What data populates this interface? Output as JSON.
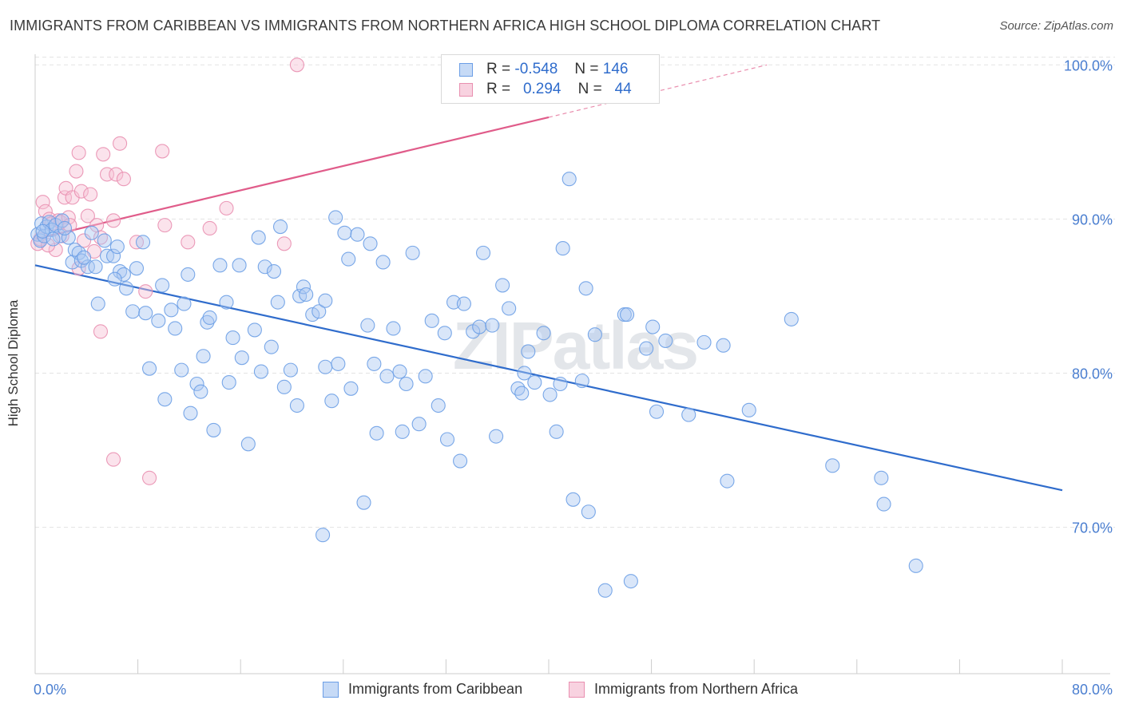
{
  "title": "IMMIGRANTS FROM CARIBBEAN VS IMMIGRANTS FROM NORTHERN AFRICA HIGH SCHOOL DIPLOMA CORRELATION CHART",
  "source": "Source: ZipAtlas.com",
  "watermark": "ZIPatlas",
  "colors": {
    "blue": "#6b9ee6",
    "blue_fill": "#aac8f2",
    "blue_line": "#2f6ccc",
    "pink": "#e98fb0",
    "pink_fill": "#f6c2d4",
    "pink_line": "#e05c8a"
  },
  "legend_top": {
    "rows": [
      {
        "r_label": "R =",
        "r_value": "-0.548",
        "n_label": "N =",
        "n_value": "146"
      },
      {
        "r_label": "R =",
        "r_value": "0.294",
        "n_label": "N =",
        "n_value": "44"
      }
    ]
  },
  "legend_bottom": [
    "Immigrants from Caribbean",
    "Immigrants from Northern Africa"
  ],
  "chart_data": {
    "type": "scatter",
    "xlabel": "",
    "ylabel": "High School Diploma",
    "xlim": [
      0,
      80
    ],
    "ylim": [
      60.5,
      101
    ],
    "x_tick_labels": [
      "0.0%",
      "80.0%"
    ],
    "y_ticks": [
      70,
      80,
      90,
      100
    ],
    "y_tick_labels": [
      "70.0%",
      "80.0%",
      "90.0%",
      "100.0%"
    ],
    "grid": "horizontal dashed",
    "legend": "top-center",
    "series": [
      {
        "name": "Immigrants from Caribbean",
        "color": "#6b9ee6",
        "trend": {
          "x": [
            0,
            80
          ],
          "y": [
            87.0,
            72.4
          ]
        },
        "points": [
          [
            0.2,
            89.0
          ],
          [
            0.4,
            88.6
          ],
          [
            0.5,
            89.7
          ],
          [
            0.7,
            88.9
          ],
          [
            0.9,
            89.5
          ],
          [
            1.1,
            89.8
          ],
          [
            1.3,
            89.3
          ],
          [
            1.6,
            89.6
          ],
          [
            1.9,
            88.9
          ],
          [
            2.1,
            89.9
          ],
          [
            2.6,
            88.8
          ],
          [
            2.9,
            87.2
          ],
          [
            3.1,
            88.0
          ],
          [
            3.4,
            87.8
          ],
          [
            3.6,
            87.3
          ],
          [
            4.1,
            86.9
          ],
          [
            4.4,
            89.1
          ],
          [
            4.7,
            86.9
          ],
          [
            4.9,
            84.5
          ],
          [
            5.4,
            88.6
          ],
          [
            5.6,
            87.6
          ],
          [
            6.1,
            87.6
          ],
          [
            6.4,
            88.2
          ],
          [
            6.6,
            86.6
          ],
          [
            6.9,
            86.4
          ],
          [
            7.1,
            85.5
          ],
          [
            7.6,
            84.0
          ],
          [
            7.9,
            86.8
          ],
          [
            8.4,
            88.5
          ],
          [
            8.6,
            83.9
          ],
          [
            8.9,
            80.3
          ],
          [
            9.6,
            83.4
          ],
          [
            9.9,
            85.7
          ],
          [
            10.1,
            78.3
          ],
          [
            10.6,
            84.1
          ],
          [
            10.9,
            82.9
          ],
          [
            11.4,
            80.2
          ],
          [
            11.6,
            84.5
          ],
          [
            11.9,
            86.4
          ],
          [
            12.1,
            77.4
          ],
          [
            12.6,
            79.3
          ],
          [
            12.9,
            78.8
          ],
          [
            13.1,
            81.1
          ],
          [
            13.4,
            83.3
          ],
          [
            13.6,
            83.6
          ],
          [
            13.9,
            76.3
          ],
          [
            14.4,
            87.0
          ],
          [
            14.9,
            84.6
          ],
          [
            15.1,
            79.4
          ],
          [
            15.4,
            82.3
          ],
          [
            15.9,
            87.0
          ],
          [
            16.1,
            81.0
          ],
          [
            16.6,
            75.4
          ],
          [
            17.1,
            82.8
          ],
          [
            17.4,
            88.8
          ],
          [
            17.6,
            80.1
          ],
          [
            17.9,
            86.9
          ],
          [
            18.4,
            81.7
          ],
          [
            18.6,
            86.6
          ],
          [
            18.9,
            84.6
          ],
          [
            19.1,
            89.5
          ],
          [
            19.4,
            79.1
          ],
          [
            19.9,
            80.2
          ],
          [
            20.4,
            77.9
          ],
          [
            20.6,
            85.0
          ],
          [
            20.9,
            85.6
          ],
          [
            21.1,
            85.1
          ],
          [
            21.6,
            83.8
          ],
          [
            22.1,
            84.0
          ],
          [
            22.4,
            69.5
          ],
          [
            22.6,
            84.7
          ],
          [
            22.6,
            80.4
          ],
          [
            23.1,
            78.2
          ],
          [
            23.4,
            90.1
          ],
          [
            23.6,
            80.6
          ],
          [
            24.1,
            89.1
          ],
          [
            24.4,
            87.4
          ],
          [
            24.6,
            79.0
          ],
          [
            25.1,
            89.0
          ],
          [
            25.6,
            71.6
          ],
          [
            25.9,
            83.1
          ],
          [
            26.1,
            88.4
          ],
          [
            26.4,
            80.6
          ],
          [
            26.6,
            76.1
          ],
          [
            27.1,
            87.2
          ],
          [
            27.4,
            79.8
          ],
          [
            27.9,
            82.9
          ],
          [
            28.4,
            80.1
          ],
          [
            28.6,
            76.2
          ],
          [
            28.9,
            79.3
          ],
          [
            29.4,
            87.8
          ],
          [
            29.9,
            76.7
          ],
          [
            30.4,
            79.8
          ],
          [
            30.9,
            83.4
          ],
          [
            31.4,
            77.9
          ],
          [
            31.9,
            82.6
          ],
          [
            32.1,
            75.7
          ],
          [
            32.6,
            84.6
          ],
          [
            33.1,
            74.3
          ],
          [
            33.4,
            84.5
          ],
          [
            34.1,
            82.7
          ],
          [
            34.6,
            83.0
          ],
          [
            34.9,
            87.8
          ],
          [
            35.6,
            83.1
          ],
          [
            35.9,
            75.9
          ],
          [
            36.4,
            85.7
          ],
          [
            36.9,
            84.2
          ],
          [
            37.6,
            79.0
          ],
          [
            37.9,
            78.7
          ],
          [
            38.1,
            80.0
          ],
          [
            38.4,
            81.4
          ],
          [
            38.9,
            79.4
          ],
          [
            39.6,
            82.6
          ],
          [
            40.1,
            78.6
          ],
          [
            40.6,
            76.2
          ],
          [
            40.9,
            79.3
          ],
          [
            41.1,
            88.1
          ],
          [
            41.6,
            92.6
          ],
          [
            41.9,
            71.8
          ],
          [
            42.6,
            79.5
          ],
          [
            42.9,
            85.5
          ],
          [
            43.1,
            71.0
          ],
          [
            43.6,
            82.5
          ],
          [
            44.4,
            65.9
          ],
          [
            45.9,
            83.8
          ],
          [
            46.1,
            83.8
          ],
          [
            46.4,
            66.5
          ],
          [
            47.6,
            81.6
          ],
          [
            48.1,
            83.0
          ],
          [
            48.4,
            77.5
          ],
          [
            49.1,
            82.1
          ],
          [
            50.9,
            77.3
          ],
          [
            52.1,
            82.0
          ],
          [
            53.6,
            81.8
          ],
          [
            53.9,
            73.0
          ],
          [
            55.6,
            77.6
          ],
          [
            58.9,
            83.5
          ],
          [
            62.1,
            74.0
          ],
          [
            65.9,
            73.2
          ],
          [
            66.1,
            71.5
          ],
          [
            68.6,
            67.5
          ],
          [
            0.6,
            89.2
          ],
          [
            1.4,
            88.7
          ],
          [
            2.3,
            89.4
          ],
          [
            3.8,
            87.5
          ],
          [
            6.2,
            86.1
          ]
        ]
      },
      {
        "name": "Immigrants from Northern Africa",
        "color": "#e98fb0",
        "trend": {
          "x": [
            0,
            40
          ],
          "y": [
            88.7,
            96.6
          ],
          "dashed_to": {
            "x": 57,
            "y": 100.0
          }
        },
        "points": [
          [
            0.2,
            88.4
          ],
          [
            0.4,
            88.7
          ],
          [
            0.6,
            91.1
          ],
          [
            0.8,
            90.5
          ],
          [
            1.1,
            90.0
          ],
          [
            1.3,
            89.7
          ],
          [
            1.6,
            88.0
          ],
          [
            1.8,
            89.9
          ],
          [
            2.0,
            89.8
          ],
          [
            2.3,
            91.4
          ],
          [
            2.4,
            92.0
          ],
          [
            2.6,
            90.1
          ],
          [
            2.7,
            89.6
          ],
          [
            2.9,
            91.4
          ],
          [
            3.2,
            93.1
          ],
          [
            3.4,
            94.3
          ],
          [
            3.6,
            91.8
          ],
          [
            3.8,
            88.6
          ],
          [
            4.1,
            90.2
          ],
          [
            4.3,
            91.6
          ],
          [
            4.6,
            87.9
          ],
          [
            4.8,
            89.6
          ],
          [
            5.1,
            88.8
          ],
          [
            5.3,
            94.2
          ],
          [
            5.6,
            92.9
          ],
          [
            6.1,
            89.9
          ],
          [
            6.3,
            92.9
          ],
          [
            6.6,
            94.9
          ],
          [
            6.9,
            92.6
          ],
          [
            7.9,
            88.5
          ],
          [
            8.6,
            85.3
          ],
          [
            9.9,
            94.4
          ],
          [
            10.1,
            89.6
          ],
          [
            11.9,
            88.5
          ],
          [
            13.6,
            89.4
          ],
          [
            14.9,
            90.7
          ],
          [
            19.4,
            88.4
          ],
          [
            20.4,
            100.0
          ],
          [
            5.1,
            82.7
          ],
          [
            6.1,
            74.4
          ],
          [
            8.9,
            73.2
          ],
          [
            3.4,
            86.8
          ],
          [
            1.0,
            88.3
          ],
          [
            2.1,
            88.9
          ]
        ]
      }
    ]
  }
}
